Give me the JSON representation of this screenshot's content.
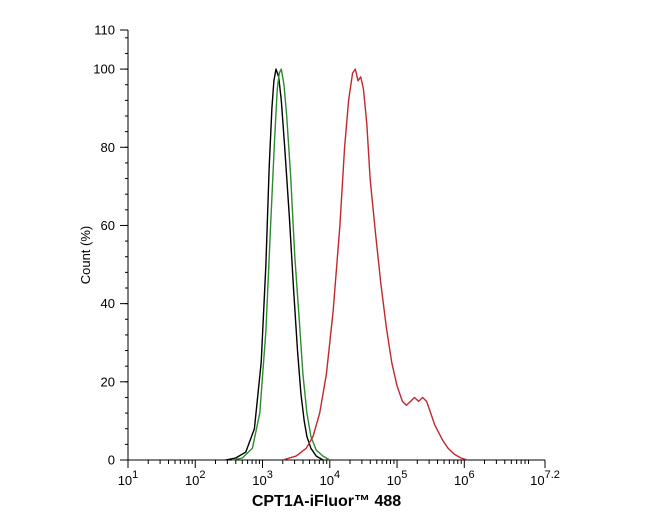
{
  "chart_data": {
    "type": "line",
    "title": "",
    "xlabel": "CPT1A-iFluor™ 488",
    "ylabel": "Count  (%)",
    "x_scale": "log10",
    "xlim_exp": [
      1,
      7.2
    ],
    "ylim": [
      0,
      110
    ],
    "x_ticks": [
      {
        "exp": 1,
        "base": "10",
        "sup": "1"
      },
      {
        "exp": 2,
        "base": "10",
        "sup": "2"
      },
      {
        "exp": 3,
        "base": "10",
        "sup": "3"
      },
      {
        "exp": 4,
        "base": "10",
        "sup": "4"
      },
      {
        "exp": 5,
        "base": "10",
        "sup": "5"
      },
      {
        "exp": 6,
        "base": "10",
        "sup": "6"
      },
      {
        "exp": 7.2,
        "base": "10",
        "sup": "7.2"
      }
    ],
    "y_ticks": [
      0,
      20,
      40,
      60,
      80,
      100,
      110
    ],
    "grid": false,
    "legend": "none",
    "series": [
      {
        "color": "#000000",
        "x_exp": [
          2.45,
          2.6,
          2.75,
          2.88,
          2.98,
          3.05,
          3.1,
          3.14,
          3.17,
          3.2,
          3.24,
          3.28,
          3.33,
          3.4,
          3.46,
          3.52,
          3.57,
          3.62,
          3.66,
          3.72,
          3.8,
          3.9
        ],
        "y": [
          0,
          0.5,
          2,
          8,
          25,
          50,
          75,
          90,
          97,
          100,
          98,
          92,
          80,
          62,
          44,
          28,
          17,
          10,
          6,
          3,
          1,
          0
        ]
      },
      {
        "color": "#2e8b2e",
        "x_exp": [
          2.55,
          2.7,
          2.85,
          2.96,
          3.05,
          3.12,
          3.18,
          3.22,
          3.25,
          3.28,
          3.32,
          3.36,
          3.42,
          3.48,
          3.55,
          3.6,
          3.66,
          3.72,
          3.8,
          3.9,
          4.0
        ],
        "y": [
          0,
          0.5,
          3,
          12,
          33,
          60,
          82,
          95,
          99,
          100,
          96,
          88,
          72,
          52,
          35,
          22,
          12,
          6,
          2.5,
          1,
          0
        ]
      },
      {
        "color": "#c0282e",
        "x_exp": [
          3.3,
          3.5,
          3.65,
          3.75,
          3.85,
          3.95,
          4.05,
          4.15,
          4.22,
          4.28,
          4.34,
          4.38,
          4.42,
          4.46,
          4.5,
          4.55,
          4.6,
          4.68,
          4.76,
          4.84,
          4.92,
          5.0,
          5.08,
          5.14,
          5.2,
          5.26,
          5.32,
          5.38,
          5.44,
          5.5,
          5.56,
          5.62,
          5.68,
          5.76,
          5.85,
          5.95,
          6.05
        ],
        "y": [
          0,
          1,
          3,
          6,
          12,
          22,
          38,
          60,
          80,
          92,
          99,
          100,
          97,
          98,
          95,
          86,
          72,
          58,
          45,
          34,
          25,
          19,
          15,
          14,
          15,
          16,
          15,
          16,
          15,
          12,
          9,
          7,
          5,
          3,
          1.5,
          0.5,
          0
        ]
      }
    ]
  }
}
